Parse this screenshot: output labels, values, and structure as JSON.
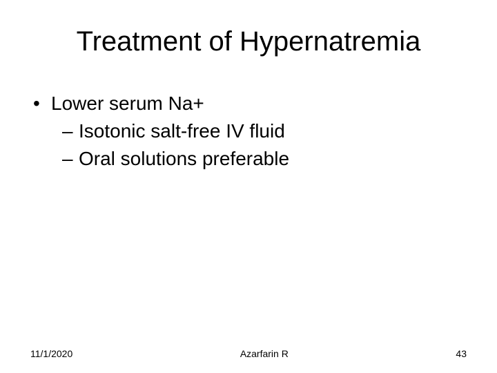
{
  "slide": {
    "title": "Treatment of Hypernatremia",
    "bullets": [
      {
        "level": 1,
        "text": "Lower serum Na+"
      },
      {
        "level": 2,
        "text": "Isotonic salt-free IV fluid"
      },
      {
        "level": 2,
        "text": "Oral solutions preferable"
      }
    ],
    "footer": {
      "date": "11/1/2020",
      "author": "Azarfarin R",
      "page": "43"
    }
  },
  "style": {
    "background_color": "#ffffff",
    "text_color": "#000000",
    "title_fontsize": 40,
    "body_fontsize": 28,
    "footer_fontsize": 14,
    "font_family": "Arial",
    "bullet_l1_marker": "•",
    "bullet_l2_marker": "–"
  }
}
